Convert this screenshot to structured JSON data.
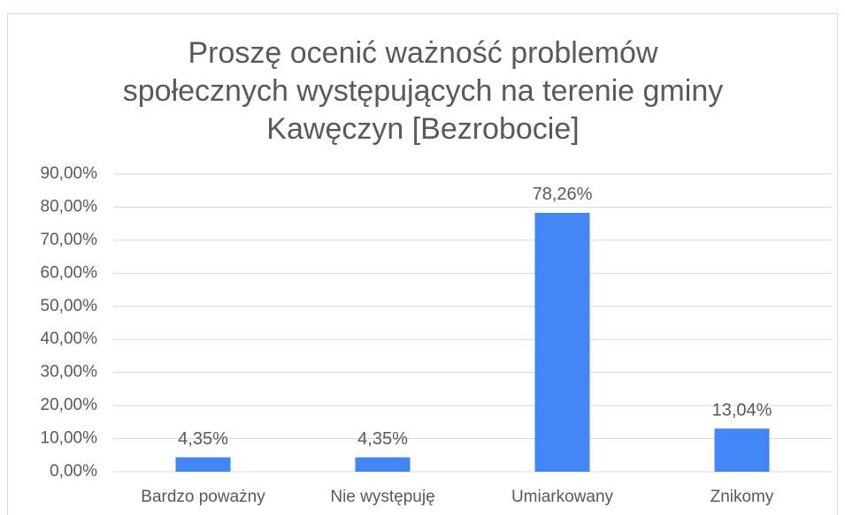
{
  "chart_data": {
    "type": "bar",
    "title": [
      "Proszę ocenić ważność problemów",
      "społecznych występujących na terenie gminy",
      "Kawęczyn [Bezrobocie]"
    ],
    "categories": [
      "Bardzo poważny",
      "Nie występuję",
      "Umiarkowany",
      "Znikomy"
    ],
    "values": [
      4.35,
      4.35,
      78.26,
      13.04
    ],
    "value_labels": [
      "4,35%",
      "4,35%",
      "78,26%",
      "13,04%"
    ],
    "color": "#4285f4",
    "ylim": [
      0,
      90
    ],
    "yticks": [
      {
        "value": 0,
        "label": "0,00%"
      },
      {
        "value": 10,
        "label": "10,00%"
      },
      {
        "value": 20,
        "label": "20,00%"
      },
      {
        "value": 30,
        "label": "30,00%"
      },
      {
        "value": 40,
        "label": "40,00%"
      },
      {
        "value": 50,
        "label": "50,00%"
      },
      {
        "value": 60,
        "label": "60,00%"
      },
      {
        "value": 70,
        "label": "70,00%"
      },
      {
        "value": 80,
        "label": "80,00%"
      },
      {
        "value": 90,
        "label": "90,00%"
      }
    ],
    "grid": true
  }
}
